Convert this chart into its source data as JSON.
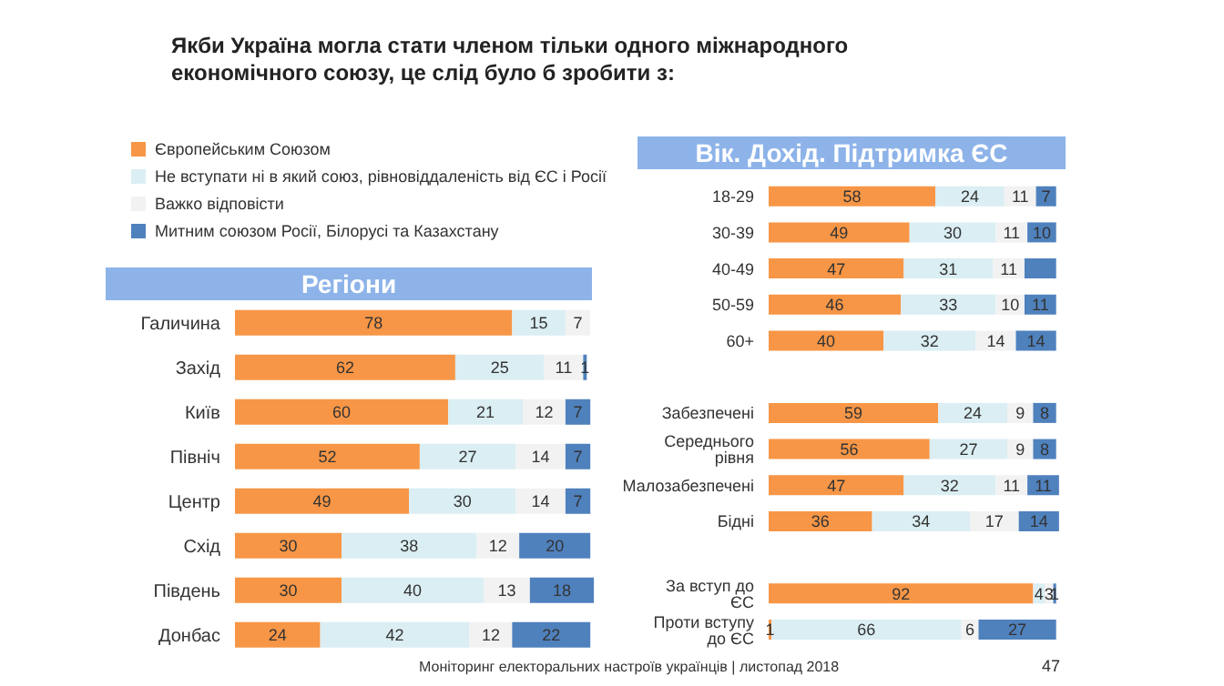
{
  "chart_data": [
    {
      "type": "bar",
      "orientation": "horizontal",
      "stacked": true,
      "title": "Якби Україна могла стати членом тільки одного міжнародного економічного союзу, це слід було б зробити з:",
      "subtitle": "Регіони",
      "categories": [
        "Галичина",
        "Захід",
        "Київ",
        "Північ",
        "Центр",
        "Схід",
        "Південь",
        "Донбас"
      ],
      "series": [
        {
          "name": "Європейським Союзом",
          "color": "#f79646",
          "values": [
            78,
            62,
            60,
            52,
            49,
            30,
            30,
            24
          ]
        },
        {
          "name": "Не вступати ні в який союз, рівновіддаленість від ЄС і Росії",
          "color": "#daeef3",
          "values": [
            15,
            25,
            21,
            27,
            30,
            38,
            40,
            42
          ]
        },
        {
          "name": "Важко відповісти",
          "color": "#f2f2f2",
          "values": [
            7,
            11,
            12,
            14,
            14,
            12,
            13,
            12
          ]
        },
        {
          "name": "Митним союзом Росії, Білорусі та Казахстану",
          "color": "#4f81bd",
          "values": [
            null,
            1,
            7,
            7,
            7,
            20,
            18,
            22
          ]
        }
      ],
      "xlim": [
        0,
        102
      ],
      "tick_labels": "y",
      "data_labels": true,
      "legend": "top left",
      "annotations": [
        "Моніторинг електоральних настроїв українців | листопад 2018",
        "47"
      ]
    },
    {
      "type": "bar",
      "orientation": "horizontal",
      "stacked": true,
      "title": "Вік. Дохід. Підтримка ЄС",
      "categories": [
        "18-29",
        "30-39",
        "40-49",
        "50-59",
        "60+",
        null,
        "Забезпечені",
        "Середнього рівня",
        "Малозабезпечені",
        "Бідні",
        null,
        "За вступ до ЄС",
        "Проти вступу до ЄС"
      ],
      "series": [
        {
          "color": "#f79646",
          "values": [
            58,
            49,
            47,
            46,
            40,
            null,
            59,
            56,
            47,
            36,
            null,
            92,
            1
          ]
        },
        {
          "color": "#daeef3",
          "values": [
            24,
            30,
            31,
            33,
            32,
            null,
            24,
            27,
            32,
            34,
            null,
            4,
            66
          ]
        },
        {
          "color": "#f2f2f2",
          "values": [
            11,
            11,
            11,
            10,
            14,
            null,
            9,
            9,
            11,
            17,
            null,
            3,
            6
          ]
        },
        {
          "color": "#4f81bd",
          "values": [
            7,
            10,
            11,
            11,
            14,
            null,
            8,
            8,
            11,
            14,
            null,
            1,
            27
          ],
          "value_labels": [
            "7",
            "10",
            null,
            "11",
            "14",
            null,
            "8",
            "8",
            "11",
            "14",
            null,
            "1",
            "27"
          ]
        }
      ],
      "xlim": [
        0,
        102
      ],
      "tick_labels": "y",
      "data_labels": true
    }
  ]
}
